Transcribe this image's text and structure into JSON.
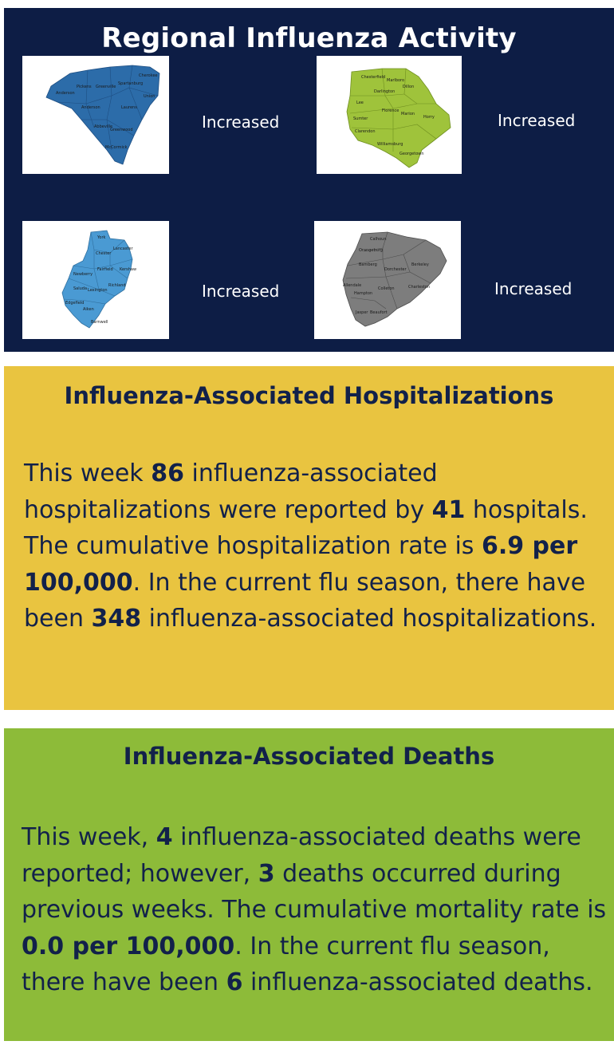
{
  "regional": {
    "title": "Regional Influenza Activity",
    "regions": [
      {
        "status": "Increased",
        "color": "#2c6ca9",
        "counties": [
          "Cherokee",
          "Pickens",
          "Greenville",
          "Spartanburg",
          "Union",
          "Oconee",
          "Anderson",
          "Laurens",
          "Abbeville",
          "Greenwood",
          "McCormick"
        ]
      },
      {
        "status": "Increased",
        "color": "#9fc33b",
        "counties": [
          "Chesterfield",
          "Marlboro",
          "Darlington",
          "Dillon",
          "Lee",
          "Florence",
          "Marion",
          "Horry",
          "Sumter",
          "Clarendon",
          "Williamsburg",
          "Georgetown"
        ]
      },
      {
        "status": "Increased",
        "color": "#4a9ad3",
        "counties": [
          "York",
          "Chester",
          "Lancaster",
          "Fairfield",
          "Kershaw",
          "Newberry",
          "Richland",
          "Lexington",
          "Saluda",
          "Edgefield",
          "Aiken",
          "Barnwell"
        ]
      },
      {
        "status": "Increased",
        "color": "#7d7d7d",
        "counties": [
          "Calhoun",
          "Orangeburg",
          "Bamberg",
          "Dorchester",
          "Berkeley",
          "Allendale",
          "Colleton",
          "Charleston",
          "Hampton",
          "Beaufort",
          "Jasper"
        ]
      }
    ]
  },
  "hospitalizations": {
    "title": "Influenza-Associated Hospitalizations",
    "t1": "This week ",
    "count": "86",
    "t2": " influenza-associated hospitalizations were reported by ",
    "hospitals": "41",
    "t3": " hospitals. The cumulative hospitalization rate is ",
    "rate": "6.9 per 100,000",
    "t4": ". In the current flu season, there have been ",
    "season_total": "348",
    "t5": " influenza-associated hospitalizations."
  },
  "deaths": {
    "title": "Influenza-Associated Deaths",
    "t1": "This week, ",
    "count": "4",
    "t2": " influenza-associated deaths were reported; however, ",
    "previous": "3",
    "t3": " deaths occurred during previous weeks. The cumulative mortality rate is ",
    "rate": "0.0 per 100,000",
    "t4": ". In the current flu season, there have been ",
    "season_total": "6",
    "t5": " influenza-associated deaths."
  }
}
